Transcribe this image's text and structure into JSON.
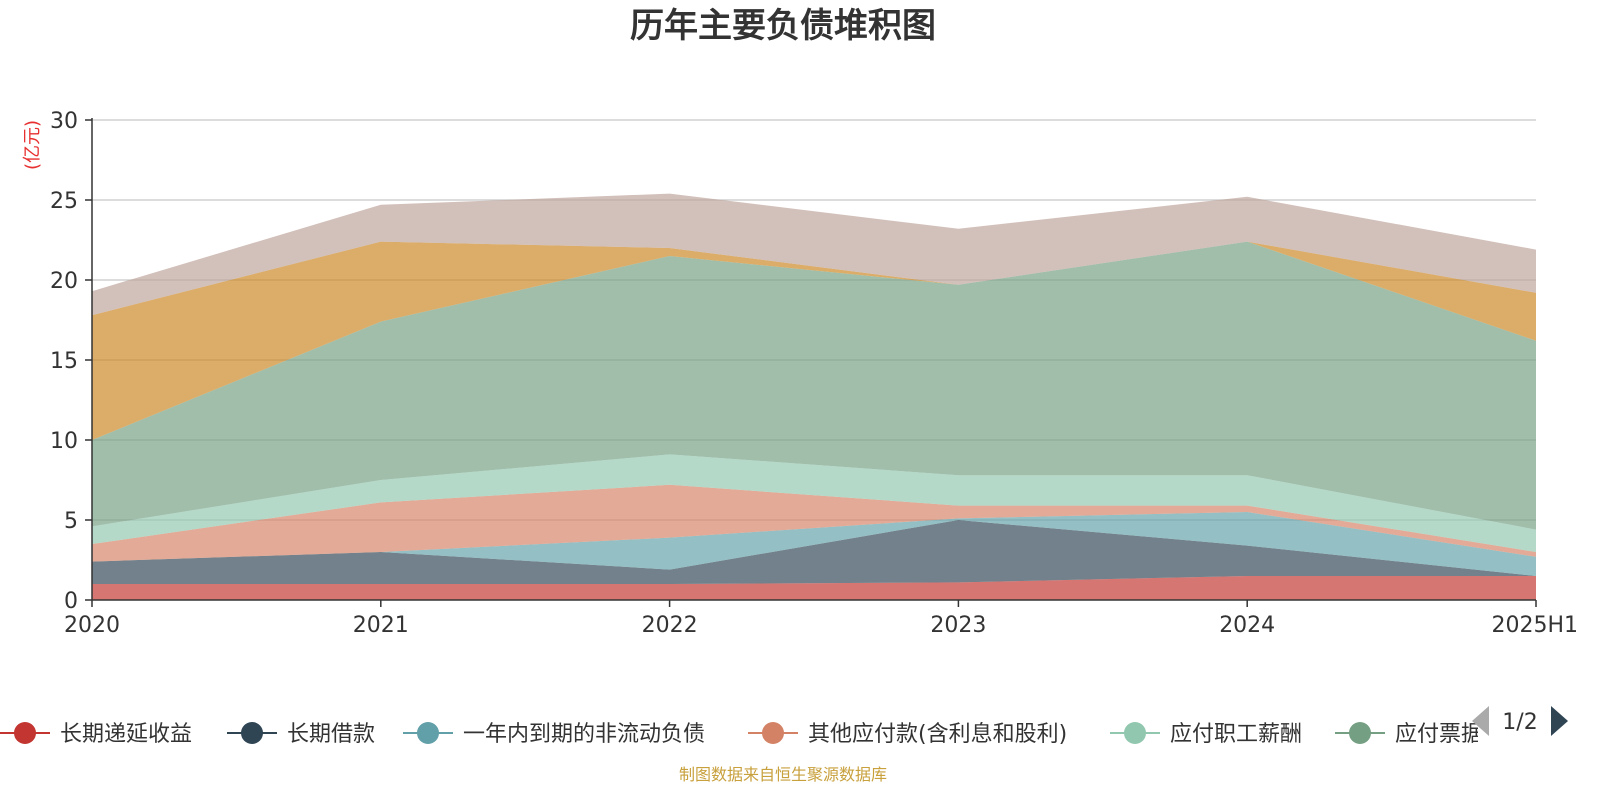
{
  "chart_data": {
    "type": "area",
    "title": "历年主要负债堆积图",
    "ylabel": "(亿元)",
    "xlabel": "",
    "categories": [
      "2020",
      "2021",
      "2022",
      "2023",
      "2024",
      "2025H1"
    ],
    "ylim": [
      0,
      30
    ],
    "yticks": [
      0,
      5,
      10,
      15,
      20,
      25,
      30
    ],
    "stacked": true,
    "grid": true,
    "series": [
      {
        "name": "长期递延收益",
        "color": "#c23531",
        "values": [
          1.0,
          1.0,
          1.0,
          1.1,
          1.5,
          1.5
        ]
      },
      {
        "name": "长期借款",
        "color": "#2f4554",
        "values": [
          1.4,
          2.0,
          0.9,
          3.9,
          1.9,
          0.0
        ]
      },
      {
        "name": "一年内到期的非流动负债",
        "color": "#61a0a8",
        "values": [
          0.0,
          0.0,
          2.0,
          0.1,
          2.1,
          1.2
        ]
      },
      {
        "name": "其他应付款(含利息和股利)",
        "color": "#d48265",
        "values": [
          1.1,
          3.1,
          3.3,
          0.8,
          0.4,
          0.3
        ]
      },
      {
        "name": "应付职工薪酬",
        "color": "#91c7ae",
        "values": [
          1.1,
          1.4,
          1.9,
          1.9,
          1.9,
          1.4
        ]
      },
      {
        "name": "应付票据",
        "color": "#749f83",
        "values": [
          5.4,
          9.9,
          12.4,
          11.9,
          14.6,
          11.8
        ]
      },
      {
        "name": "",
        "color": "#ca8622",
        "values": [
          7.8,
          5.0,
          0.5,
          0.0,
          0.0,
          3.0
        ]
      },
      {
        "name": "",
        "color": "#bda29a",
        "values": [
          1.5,
          2.3,
          3.4,
          3.5,
          2.8,
          2.7
        ]
      }
    ]
  },
  "legend": {
    "visible_labels": [
      "长期递延收益",
      "长期借款",
      "一年内到期的非流动负债",
      "其他应付款(含利息和股利)",
      "应付职工薪酬",
      "应付票据"
    ],
    "page": "1/2"
  },
  "colors": {
    "unit": "#e83030",
    "source": "#c8a03c",
    "axis": "#333333",
    "grid": "#c8c8c8"
  },
  "source": "制图数据来自恒生聚源数据库"
}
